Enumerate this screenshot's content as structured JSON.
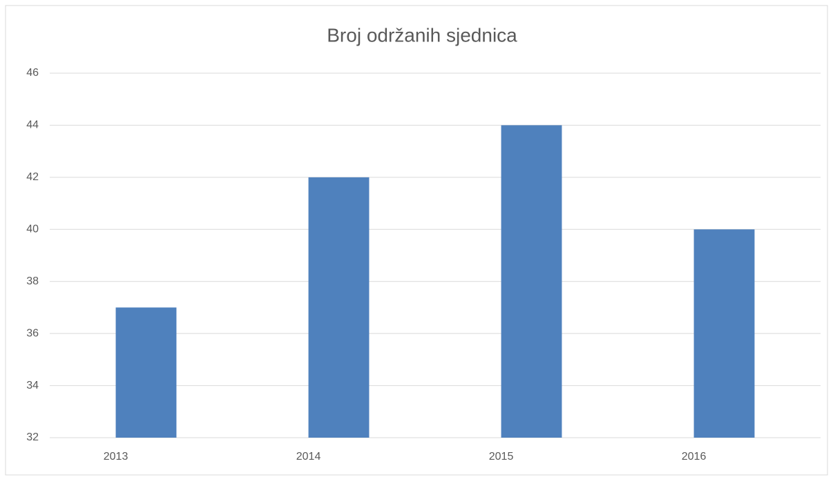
{
  "chart_data": {
    "type": "bar",
    "title": "Broj održanih sjednica",
    "categories": [
      "2013",
      "2014",
      "2015",
      "2016"
    ],
    "values": [
      37,
      42,
      44,
      40
    ],
    "color": "#4f81bd",
    "ylim": [
      32,
      46
    ],
    "yticks": [
      32,
      34,
      36,
      38,
      40,
      42,
      44,
      46
    ],
    "grid": true
  }
}
